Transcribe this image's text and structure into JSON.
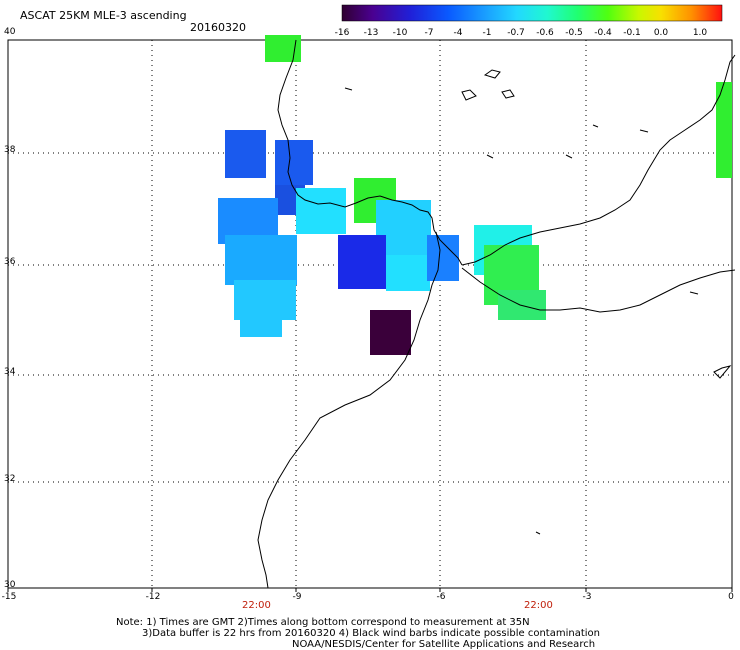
{
  "header": {
    "title": "ASCAT 25KM MLE-3 ascending",
    "date": "20160320"
  },
  "colorbar": {
    "labels": [
      "-16",
      "-13",
      "-10",
      "-7",
      "-4",
      "-1",
      "-0.7",
      "-0.6",
      "-0.5",
      "-0.4",
      "-0.1",
      "0.0",
      "1.0"
    ],
    "colors": [
      "#3a003a",
      "#4a00aa",
      "#1a1ad8",
      "#0a5aff",
      "#1a9cff",
      "#22ccff",
      "#20f0e8",
      "#20ff90",
      "#30ff20",
      "#a8ff18",
      "#f8f000",
      "#ff9000",
      "#ff1800"
    ]
  },
  "axes": {
    "lat_labels": [
      "40",
      "38",
      "36",
      "34",
      "32",
      "30"
    ],
    "lon_labels": [
      "-15",
      "-12",
      "-9",
      "-6",
      "-3",
      "0"
    ],
    "time_labels": [
      "22:00",
      "22:00"
    ]
  },
  "footer": {
    "note1": "Note: 1) Times are GMT 2)Times along bottom correspond to measurement at 35N",
    "note2": "3)Data buffer is 22 hrs from 20160320 4) Black wind barbs indicate possible contamination",
    "note3": "NOAA/NESDIS/Center for Satellite Applications and Research"
  },
  "legend_colors": {
    "data_blue_dark": "#1a4ad8",
    "data_blue": "#1a6aff",
    "data_cyan": "#22ccff",
    "data_aqua": "#20f0e8",
    "data_green": "#30ee30",
    "data_purple": "#3a003a"
  }
}
